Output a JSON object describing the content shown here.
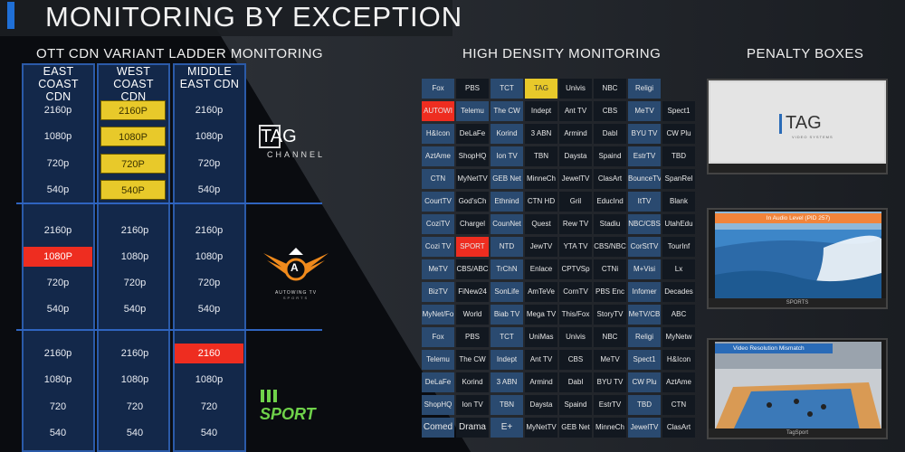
{
  "title": "MONITORING BY EXCEPTION",
  "sections": {
    "ladder": "OTT CDN VARIANT LADDER MONITORING",
    "high_density": "HIGH DENSITY MONITORING",
    "penalty": "PENALTY BOXES"
  },
  "colors": {
    "accent_blue": "#1f6fd6",
    "column_fill": "#13284a",
    "column_border": "#2b5aa8",
    "alert_red": "#ee2d20",
    "warning_yellow": "#e8c92a",
    "tile_blue": "#2a4a70",
    "tile_dark": "#121820"
  },
  "ladder": {
    "columns": [
      {
        "header": [
          "EAST COAST",
          "CDN"
        ]
      },
      {
        "header": [
          "WEST COAST",
          "CDN"
        ]
      },
      {
        "header": [
          "MIDDLE",
          "EAST CDN"
        ]
      }
    ],
    "groups": [
      {
        "channel": "TAG CHANNEL",
        "rows": [
          [
            {
              "t": "2160p",
              "s": "ok"
            },
            {
              "t": "2160P",
              "s": "warn"
            },
            {
              "t": "2160p",
              "s": "ok"
            }
          ],
          [
            {
              "t": "1080p",
              "s": "ok"
            },
            {
              "t": "1080P",
              "s": "warn"
            },
            {
              "t": "1080p",
              "s": "ok"
            }
          ],
          [
            {
              "t": "720p",
              "s": "ok"
            },
            {
              "t": "720P",
              "s": "warn"
            },
            {
              "t": "720p",
              "s": "ok"
            }
          ],
          [
            {
              "t": "540p",
              "s": "ok"
            },
            {
              "t": "540P",
              "s": "warn"
            },
            {
              "t": "540p",
              "s": "ok"
            }
          ]
        ]
      },
      {
        "channel": "AUTOWING TV",
        "rows": [
          [
            {
              "t": "2160p",
              "s": "ok"
            },
            {
              "t": "2160p",
              "s": "ok"
            },
            {
              "t": "2160p",
              "s": "ok"
            }
          ],
          [
            {
              "t": "1080P",
              "s": "error"
            },
            {
              "t": "1080p",
              "s": "ok"
            },
            {
              "t": "1080p",
              "s": "ok"
            }
          ],
          [
            {
              "t": "720p",
              "s": "ok"
            },
            {
              "t": "720p",
              "s": "ok"
            },
            {
              "t": "720p",
              "s": "ok"
            }
          ],
          [
            {
              "t": "540p",
              "s": "ok"
            },
            {
              "t": "540p",
              "s": "ok"
            },
            {
              "t": "540p",
              "s": "ok"
            }
          ]
        ]
      },
      {
        "channel": "SPORT",
        "rows": [
          [
            {
              "t": "2160p",
              "s": "ok"
            },
            {
              "t": "2160p",
              "s": "ok"
            },
            {
              "t": "2160",
              "s": "error"
            }
          ],
          [
            {
              "t": "1080p",
              "s": "ok"
            },
            {
              "t": "1080p",
              "s": "ok"
            },
            {
              "t": "1080p",
              "s": "ok"
            }
          ],
          [
            {
              "t": "720",
              "s": "ok"
            },
            {
              "t": "720",
              "s": "ok"
            },
            {
              "t": "720",
              "s": "ok"
            }
          ],
          [
            {
              "t": "540",
              "s": "ok"
            },
            {
              "t": "540",
              "s": "ok"
            },
            {
              "t": "540",
              "s": "ok"
            }
          ]
        ]
      }
    ]
  },
  "logos": {
    "tag_letters": "TAG",
    "tag_sub": "CHANNEL",
    "autowing_letter": "A",
    "autowing_text": "AUTOWING TV",
    "autowing_sub": "SPORTS",
    "sport_text": "SPORT"
  },
  "high_density": {
    "rows": [
      [
        "Fox",
        "PBS",
        "TCT",
        "TAG",
        "Univis",
        "NBC",
        "Religi",
        ""
      ],
      [
        "AUTOWI",
        "Telemu",
        "The CW",
        "Indept",
        "Ant TV",
        "CBS",
        "MeTV",
        "Spect1"
      ],
      [
        "H&Icon",
        "DeLaFe",
        "Korind",
        "3 ABN",
        "Armind",
        "Dabl",
        "BYU TV",
        "CW Plu"
      ],
      [
        "AztAme",
        "ShopHQ",
        "Ion TV",
        "TBN",
        "Daysta",
        "Spaind",
        "EstrTV",
        "TBD"
      ],
      [
        "CTN",
        "MyNetTV",
        "GEB Net",
        "MinneCh",
        "JewelTV",
        "ClasArt",
        "BounceTV",
        "SpanRel"
      ],
      [
        "CourtTV",
        "God'sCh",
        "Ethnind",
        "CTN HD",
        "Gril",
        "EducInd",
        "ItTV",
        "Blank"
      ],
      [
        "CoziTV",
        "Chargel",
        "CounNet",
        "Quest",
        "Rew TV",
        "Stadiu",
        "NBC/CBS",
        "UtahEdu"
      ],
      [
        "Cozi TV",
        "SPORT",
        "NTD",
        "JewTV",
        "YTA TV",
        "CBS/NBC",
        "CorStTV",
        "TourInf"
      ],
      [
        "MeTV",
        "CBS/ABC",
        "TrChN",
        "Enlace",
        "CPTVSp",
        "CTNi",
        "M+Visi",
        "Lx"
      ],
      [
        "BizTV",
        "FiNew24",
        "SonLife",
        "AmTeVe",
        "CornTV",
        "PBS Enc",
        "Infomer",
        "Decades"
      ],
      [
        "MyNet/Fo",
        "World",
        "Biab TV",
        "Mega TV",
        "This/Fox",
        "StoryTV",
        "MeTV/CB",
        "ABC"
      ],
      [
        "Fox",
        "PBS",
        "TCT",
        "UniMas",
        "Univis",
        "NBC",
        "Religi",
        "MyNetw"
      ],
      [
        "Telemu",
        "The CW",
        "Indept",
        "Ant TV",
        "CBS",
        "MeTV",
        "Spect1",
        "H&Icon"
      ],
      [
        "DeLaFe",
        "Korind",
        "3 ABN",
        "Armind",
        "Dabl",
        "BYU TV",
        "CW Plu",
        "AztAme"
      ],
      [
        "ShopHQ",
        "Ion TV",
        "TBN",
        "Daysta",
        "Spaind",
        "EstrTV",
        "TBD",
        "CTN"
      ],
      [
        "Comed",
        "Drama",
        "E+",
        "MyNetTV",
        "GEB Net",
        "MinneCh",
        "JewelTV",
        "ClasArt"
      ]
    ],
    "statuses": [
      [
        "blue",
        "dark",
        "blue",
        "yellow",
        "dark",
        "dark",
        "blue",
        "none"
      ],
      [
        "red",
        "blue",
        "blue",
        "dark",
        "dark",
        "dark",
        "blue",
        "dark"
      ],
      [
        "blue",
        "dark",
        "blue",
        "dark",
        "dark",
        "dark",
        "blue",
        "dark"
      ],
      [
        "blue",
        "dark",
        "blue",
        "dark",
        "dark",
        "dark",
        "blue",
        "dark"
      ],
      [
        "blue",
        "dark",
        "blue",
        "dark",
        "dark",
        "dark",
        "blue",
        "dark"
      ],
      [
        "blue",
        "dark",
        "blue",
        "dark",
        "dark",
        "dark",
        "blue",
        "dark"
      ],
      [
        "blue",
        "dark",
        "blue",
        "dark",
        "dark",
        "dark",
        "blue",
        "dark"
      ],
      [
        "blue",
        "red",
        "blue",
        "dark",
        "dark",
        "dark",
        "blue",
        "dark"
      ],
      [
        "blue",
        "dark",
        "blue",
        "dark",
        "dark",
        "dark",
        "blue",
        "dark"
      ],
      [
        "blue",
        "dark",
        "blue",
        "dark",
        "dark",
        "dark",
        "blue",
        "dark"
      ],
      [
        "blue",
        "dark",
        "blue",
        "dark",
        "dark",
        "dark",
        "blue",
        "dark"
      ],
      [
        "blue",
        "dark",
        "blue",
        "dark",
        "dark",
        "dark",
        "blue",
        "dark"
      ],
      [
        "blue",
        "dark",
        "blue",
        "dark",
        "dark",
        "dark",
        "blue",
        "dark"
      ],
      [
        "blue",
        "dark",
        "blue",
        "dark",
        "dark",
        "dark",
        "blue",
        "dark"
      ],
      [
        "blue",
        "dark",
        "blue",
        "dark",
        "dark",
        "dark",
        "blue",
        "dark"
      ],
      [
        "blue",
        "dark",
        "blue",
        "dark",
        "dark",
        "dark",
        "blue",
        "dark"
      ]
    ]
  },
  "penalty_boxes": [
    {
      "alert": "",
      "caption": "",
      "logo": "TAG",
      "logo_sub": "VIDEO SYSTEMS"
    },
    {
      "alert": "In Audio Level (PID 257)",
      "caption": "SPORTS"
    },
    {
      "alert": "Video Resolution Mismatch",
      "caption": "TagSport"
    }
  ]
}
